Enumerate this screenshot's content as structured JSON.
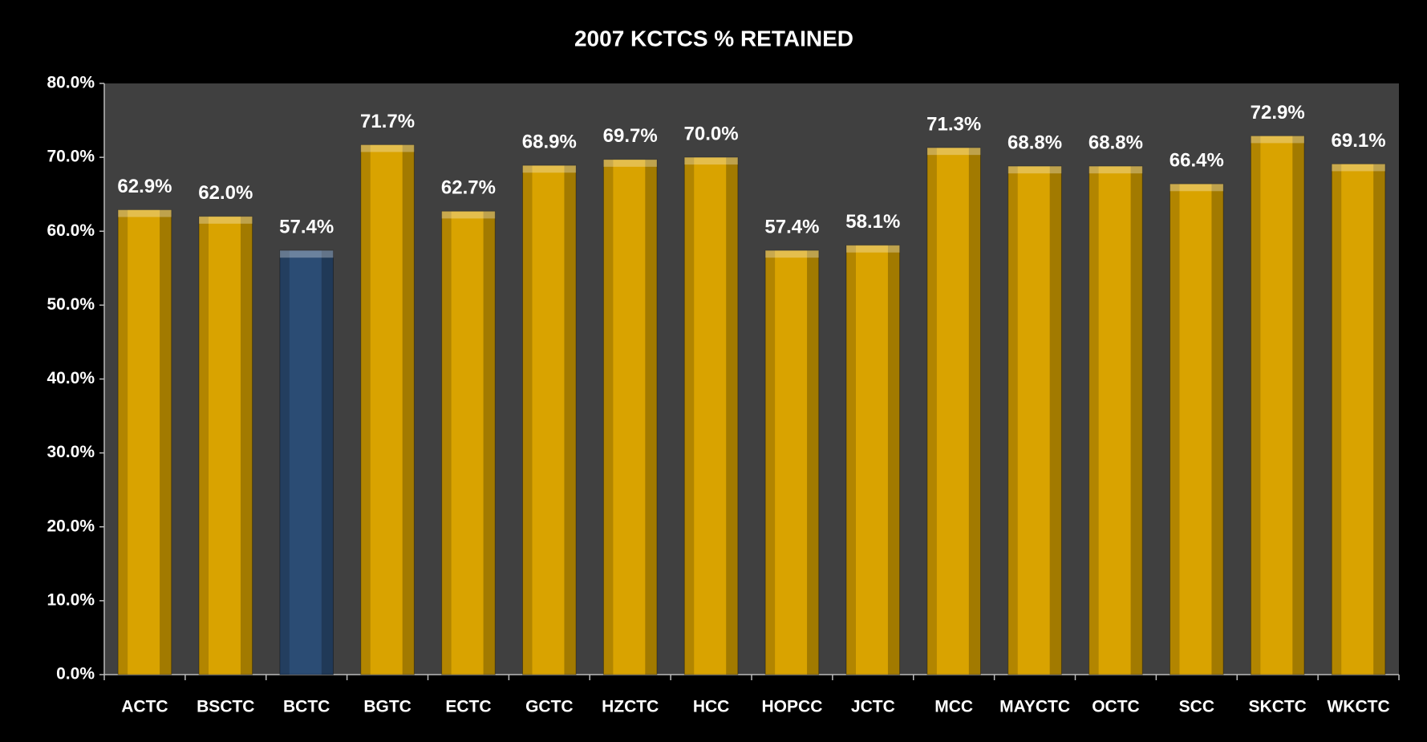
{
  "chart_data": {
    "type": "bar",
    "title": "2007 KCTCS % RETAINED",
    "categories": [
      "ACTC",
      "BSCTC",
      "BCTC",
      "BGTC",
      "ECTC",
      "GCTC",
      "HZCTC",
      "HCC",
      "HOPCC",
      "JCTC",
      "MCC",
      "MAYCTC",
      "OCTC",
      "SCC",
      "SKCTC",
      "WKCTC"
    ],
    "values": [
      62.9,
      62.0,
      57.4,
      71.7,
      62.7,
      68.9,
      69.7,
      70.0,
      57.4,
      58.1,
      71.3,
      68.8,
      68.8,
      66.4,
      72.9,
      69.1
    ],
    "value_labels": [
      "62.9%",
      "62.0%",
      "57.4%",
      "71.7%",
      "62.7%",
      "68.9%",
      "69.7%",
      "70.0%",
      "57.4%",
      "58.1%",
      "71.3%",
      "68.8%",
      "68.8%",
      "66.4%",
      "72.9%",
      "69.1%"
    ],
    "colors": [
      "#d9a300",
      "#d9a300",
      "#2b4c74",
      "#d9a300",
      "#d9a300",
      "#d9a300",
      "#d9a300",
      "#d9a300",
      "#d9a300",
      "#d9a300",
      "#d9a300",
      "#d9a300",
      "#d9a300",
      "#d9a300",
      "#d9a300",
      "#d9a300"
    ],
    "ylim": [
      0,
      80
    ],
    "yticks": [
      {
        "value": 0,
        "label": "0.0%"
      },
      {
        "value": 10,
        "label": "10.0%"
      },
      {
        "value": 20,
        "label": "20.0%"
      },
      {
        "value": 30,
        "label": "30.0%"
      },
      {
        "value": 40,
        "label": "40.0%"
      },
      {
        "value": 50,
        "label": "50.0%"
      },
      {
        "value": 60,
        "label": "60.0%"
      },
      {
        "value": 70,
        "label": "70.0%"
      },
      {
        "value": 80,
        "label": "80.0%"
      }
    ]
  }
}
